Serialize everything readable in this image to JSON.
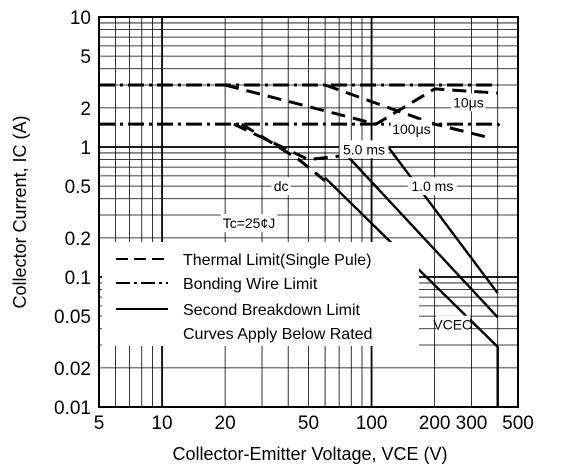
{
  "chart_data": {
    "type": "line",
    "title": "",
    "xlabel": "Collector-Emitter Voltage, VCE (V)",
    "ylabel": "Collector Current, IC (A)",
    "x_scale": "log",
    "y_scale": "log",
    "xlim": [
      5,
      500
    ],
    "ylim": [
      0.01,
      10
    ],
    "grid": true,
    "x_ticks": [
      {
        "value": 5,
        "label": "5"
      },
      {
        "value": 10,
        "label": "10"
      },
      {
        "value": 20,
        "label": "20"
      },
      {
        "value": 50,
        "label": "50"
      },
      {
        "value": 100,
        "label": "100"
      },
      {
        "value": 200,
        "label": "200"
      },
      {
        "value": 300,
        "label": "300"
      },
      {
        "value": 500,
        "label": "500"
      }
    ],
    "y_ticks": [
      {
        "value": 10,
        "label": "10"
      },
      {
        "value": 5,
        "label": "5"
      },
      {
        "value": 2,
        "label": "2"
      },
      {
        "value": 1,
        "label": "1"
      },
      {
        "value": 0.5,
        "label": "0.5"
      },
      {
        "value": 0.2,
        "label": "0.2"
      },
      {
        "value": 0.1,
        "label": "0.1"
      },
      {
        "value": 0.05,
        "label": "0.05"
      },
      {
        "value": 0.02,
        "label": "0.02"
      },
      {
        "value": 0.01,
        "label": "0.01"
      }
    ],
    "legend": {
      "position": "bottom-left",
      "entries": [
        {
          "label": "Thermal Limit(Single Pule)",
          "style": "dashed"
        },
        {
          "label": "Bonding Wire Limit",
          "style": "dashdot"
        },
        {
          "label": "Second Breakdown Limit",
          "style": "solid"
        },
        {
          "label": "Curves Apply Below Rated",
          "style": "none"
        }
      ]
    },
    "annotations": [
      {
        "text": "10μs",
        "x": 290,
        "y": 2.2
      },
      {
        "text": "100μs",
        "x": 155,
        "y": 1.38
      },
      {
        "text": "5.0 ms",
        "x": 92,
        "y": 0.96
      },
      {
        "text": "dc",
        "x": 37,
        "y": 0.5
      },
      {
        "text": "1.0 ms",
        "x": 195,
        "y": 0.5
      },
      {
        "text": "Tc=25¢J",
        "x": 26,
        "y": 0.26
      },
      {
        "text": "VCEO",
        "x": 245,
        "y": 0.043
      }
    ],
    "series": [
      {
        "style": "dashdot",
        "x": [
          5,
          400
        ],
        "y": [
          3,
          3
        ]
      },
      {
        "style": "dashdot",
        "x": [
          5,
          400,
          410
        ],
        "y": [
          1.5,
          1.5,
          1.45
        ]
      },
      {
        "style": "dashed",
        "x": [
          20,
          105,
          200,
          400
        ],
        "y": [
          3,
          1.5,
          2.8,
          2.6
        ]
      },
      {
        "style": "dashed",
        "x": [
          60,
          200,
          350
        ],
        "y": [
          3,
          1.5,
          1.2
        ]
      },
      {
        "style": "dashed",
        "x": [
          22,
          50,
          95
        ],
        "y": [
          1.5,
          0.8,
          0.9
        ]
      },
      {
        "style": "dashed",
        "x": [
          24,
          45,
          60
        ],
        "y": [
          1.5,
          0.8,
          0.55
        ]
      },
      {
        "style": "solid",
        "x": [
          120,
          400
        ],
        "y": [
          1,
          0.075
        ]
      },
      {
        "style": "solid",
        "x": [
          70,
          400
        ],
        "y": [
          1,
          0.049
        ]
      },
      {
        "style": "solid",
        "x": [
          60,
          400,
          400
        ],
        "y": [
          0.58,
          0.029,
          0.01
        ]
      }
    ]
  }
}
